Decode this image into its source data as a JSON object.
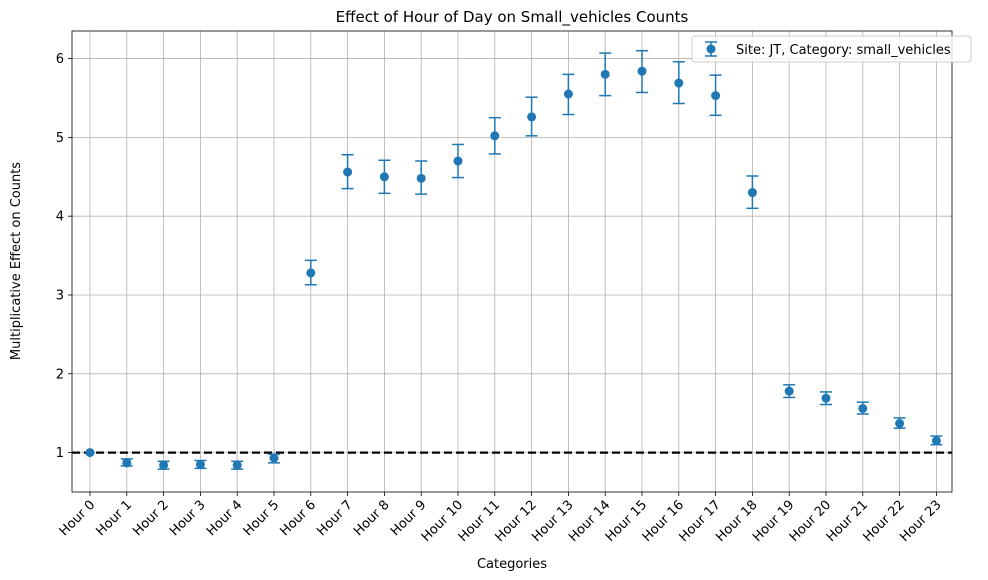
{
  "chart_data": {
    "type": "scatter",
    "title": "Effect of Hour of Day on Small_vehicles Counts",
    "xlabel": "Categories",
    "ylabel": "Multiplicative Effect on Counts",
    "ylim": [
      0.5,
      6.35
    ],
    "yticks": [
      1,
      2,
      3,
      4,
      5,
      6
    ],
    "grid": true,
    "legend_position": "upper right",
    "reference_line": 1,
    "categories": [
      "Hour 0",
      "Hour 1",
      "Hour 2",
      "Hour 3",
      "Hour 4",
      "Hour 5",
      "Hour 6",
      "Hour 7",
      "Hour 8",
      "Hour 9",
      "Hour 10",
      "Hour 11",
      "Hour 12",
      "Hour 13",
      "Hour 14",
      "Hour 15",
      "Hour 16",
      "Hour 17",
      "Hour 18",
      "Hour 19",
      "Hour 20",
      "Hour 21",
      "Hour 22",
      "Hour 23"
    ],
    "series": [
      {
        "name": "Site: JT, Category: small_vehicles",
        "color": "#1f77b4",
        "values": [
          1.0,
          0.87,
          0.84,
          0.85,
          0.84,
          0.93,
          3.28,
          4.56,
          4.5,
          4.48,
          4.7,
          5.02,
          5.26,
          5.55,
          5.8,
          5.84,
          5.69,
          5.53,
          4.3,
          1.78,
          1.69,
          1.56,
          1.37,
          1.15
        ],
        "lower": [
          1.0,
          0.83,
          0.79,
          0.8,
          0.79,
          0.87,
          3.13,
          4.35,
          4.29,
          4.28,
          4.49,
          4.79,
          5.02,
          5.29,
          5.53,
          5.57,
          5.43,
          5.28,
          4.1,
          1.7,
          1.61,
          1.49,
          1.31,
          1.1
        ],
        "upper": [
          1.0,
          0.92,
          0.89,
          0.9,
          0.89,
          0.98,
          3.44,
          4.78,
          4.71,
          4.7,
          4.91,
          5.25,
          5.51,
          5.8,
          6.07,
          6.1,
          5.96,
          5.79,
          4.51,
          1.86,
          1.77,
          1.64,
          1.44,
          1.21
        ]
      }
    ]
  }
}
